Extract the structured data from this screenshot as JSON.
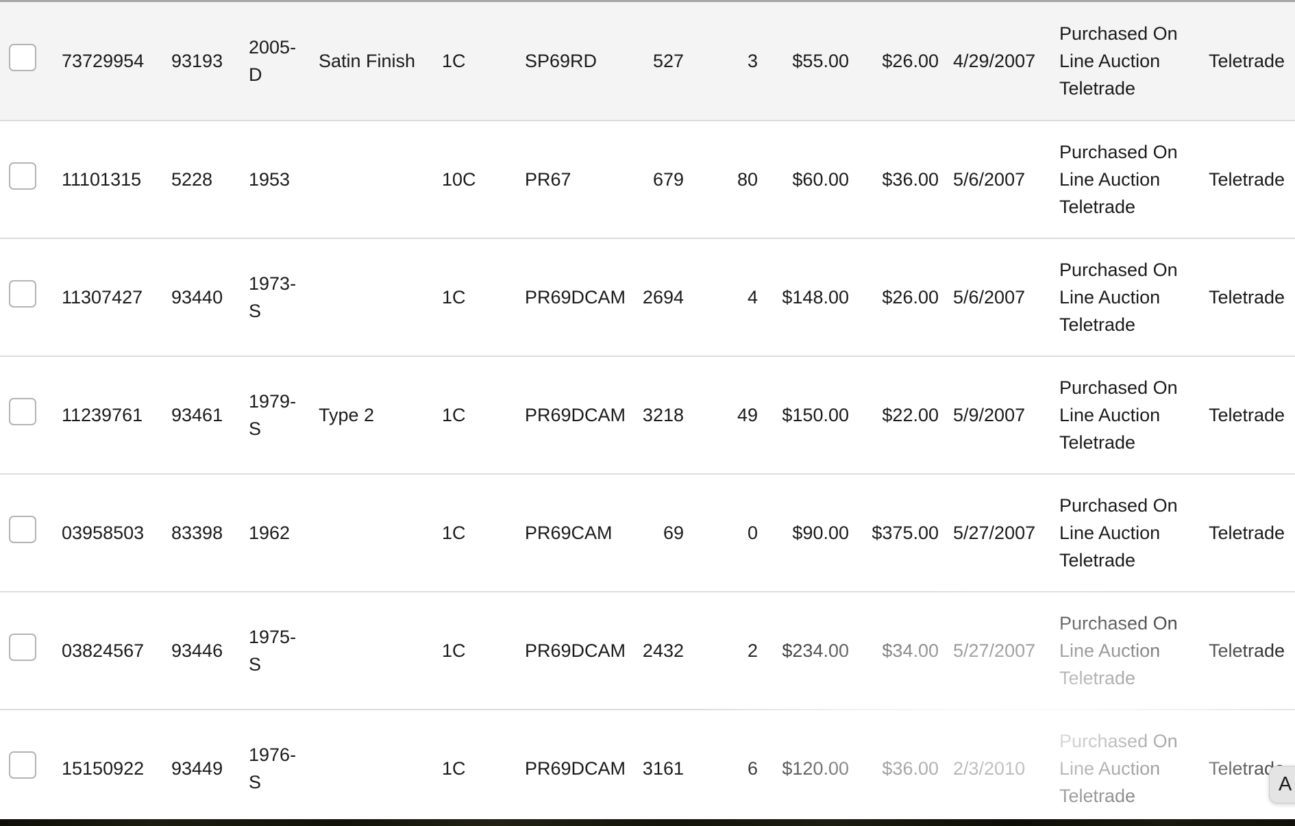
{
  "colors": {
    "shaded_row_background": "#f4f4f4",
    "row_divider": "#dcdcdc",
    "table_top_border": "#a6a6a6",
    "text": "#1a1a1a",
    "floating_button_background": "#e4e4e4",
    "bottom_strip": "#14130c"
  },
  "floating_button": {
    "label": "A"
  },
  "table": {
    "rows": [
      {
        "shaded": true,
        "selected": false,
        "cert_number": "73729954",
        "coin_number": "93193",
        "date_year": "2005-D",
        "variety": "Satin Finish",
        "denomination": "1C",
        "grade": "SP69RD",
        "population": "527",
        "pop_higher": "3",
        "price_guide_value": "$55.00",
        "amount_paid": "$26.00",
        "purchase_date": "4/29/2007",
        "notes": "Purchased On Line Auction Teletrade",
        "source": "Teletrade"
      },
      {
        "shaded": false,
        "selected": false,
        "cert_number": "11101315",
        "coin_number": "5228",
        "date_year": "1953",
        "variety": "",
        "denomination": "10C",
        "grade": "PR67",
        "population": "679",
        "pop_higher": "80",
        "price_guide_value": "$60.00",
        "amount_paid": "$36.00",
        "purchase_date": "5/6/2007",
        "notes": "Purchased On Line Auction Teletrade",
        "source": "Teletrade"
      },
      {
        "shaded": false,
        "selected": false,
        "cert_number": "11307427",
        "coin_number": "93440",
        "date_year": "1973-S",
        "variety": "",
        "denomination": "1C",
        "grade": "PR69DCAM",
        "population": "2694",
        "pop_higher": "4",
        "price_guide_value": "$148.00",
        "amount_paid": "$26.00",
        "purchase_date": "5/6/2007",
        "notes": "Purchased On Line Auction Teletrade",
        "source": "Teletrade"
      },
      {
        "shaded": false,
        "selected": false,
        "cert_number": "11239761",
        "coin_number": "93461",
        "date_year": "1979-S",
        "variety": "Type 2",
        "denomination": "1C",
        "grade": "PR69DCAM",
        "population": "3218",
        "pop_higher": "49",
        "price_guide_value": "$150.00",
        "amount_paid": "$22.00",
        "purchase_date": "5/9/2007",
        "notes": "Purchased On Line Auction Teletrade",
        "source": "Teletrade"
      },
      {
        "shaded": false,
        "selected": false,
        "cert_number": "03958503",
        "coin_number": "83398",
        "date_year": "1962",
        "variety": "",
        "denomination": "1C",
        "grade": "PR69CAM",
        "population": "69",
        "pop_higher": "0",
        "price_guide_value": "$90.00",
        "amount_paid": "$375.00",
        "purchase_date": "5/27/2007",
        "notes": "Purchased On Line Auction Teletrade",
        "source": "Teletrade"
      },
      {
        "shaded": false,
        "selected": false,
        "cert_number": "03824567",
        "coin_number": "93446",
        "date_year": "1975-S",
        "variety": "",
        "denomination": "1C",
        "grade": "PR69DCAM",
        "population": "2432",
        "pop_higher": "2",
        "price_guide_value": "$234.00",
        "amount_paid": "$34.00",
        "purchase_date": "5/27/2007",
        "notes": "Purchased On Line Auction Teletrade",
        "source": "Teletrade"
      },
      {
        "shaded": false,
        "selected": false,
        "cert_number": "15150922",
        "coin_number": "93449",
        "date_year": "1976-S",
        "variety": "",
        "denomination": "1C",
        "grade": "PR69DCAM",
        "population": "3161",
        "pop_higher": "6",
        "price_guide_value": "$120.00",
        "amount_paid": "$36.00",
        "purchase_date": "2/3/2010",
        "notes": "Purchased On Line Auction Teletrade",
        "source": "Teletrade"
      }
    ]
  }
}
